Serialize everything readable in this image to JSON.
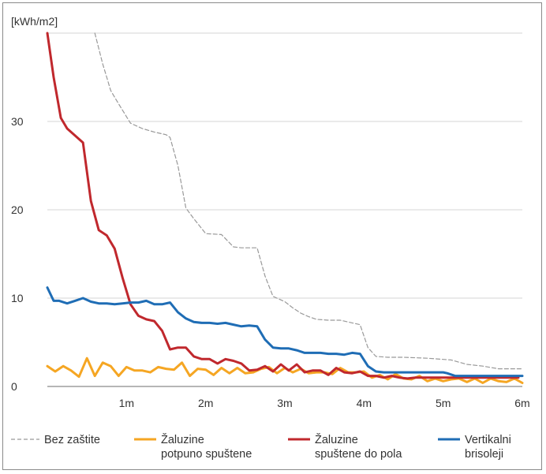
{
  "chart_data": {
    "type": "line",
    "ylabel": "[kWh/m2]",
    "y_ticks": [
      "0",
      "10",
      "20",
      "30"
    ],
    "x_ticks": [
      "1m",
      "2m",
      "3m",
      "4m",
      "5m",
      "6m"
    ],
    "xlim": [
      0,
      6
    ],
    "ylim": [
      0,
      40
    ],
    "grid": "horizontal",
    "legend_position": "bottom",
    "series": [
      {
        "name": "Bez zaštite",
        "name_lines": [
          "Bez zaštite"
        ],
        "color": "#999999",
        "style": "dashed",
        "x": [
          0.6,
          0.7,
          0.75,
          0.8,
          0.9,
          1.05,
          1.2,
          1.35,
          1.5,
          1.55,
          1.65,
          1.75,
          1.85,
          2.0,
          2.2,
          2.35,
          2.45,
          2.65,
          2.75,
          2.85,
          3.0,
          3.1,
          3.2,
          3.3,
          3.4,
          3.55,
          3.7,
          3.85,
          3.95,
          4.05,
          4.15,
          4.3,
          4.5,
          4.8,
          5.1,
          5.3,
          5.5,
          5.7,
          6.0
        ],
        "y": [
          40,
          36.5,
          35,
          33.5,
          32,
          29.8,
          29.2,
          28.8,
          28.5,
          28.2,
          25,
          20.2,
          19,
          17.3,
          17.2,
          15.8,
          15.7,
          15.7,
          12.5,
          10.2,
          9.6,
          8.9,
          8.3,
          7.9,
          7.6,
          7.5,
          7.5,
          7.2,
          7.0,
          4.4,
          3.4,
          3.3,
          3.3,
          3.2,
          3.0,
          2.5,
          2.3,
          2.0,
          2.0
        ]
      },
      {
        "name": "Žaluzine potpuno spuštene",
        "name_lines": [
          "Žaluzine",
          "potpuno spuštene"
        ],
        "color": "#f5a623",
        "style": "solid",
        "x": [
          0.0,
          0.1,
          0.2,
          0.3,
          0.4,
          0.5,
          0.6,
          0.7,
          0.8,
          0.9,
          1.0,
          1.1,
          1.2,
          1.3,
          1.4,
          1.5,
          1.6,
          1.7,
          1.8,
          1.9,
          2.0,
          2.1,
          2.2,
          2.3,
          2.4,
          2.5,
          2.6,
          2.7,
          2.8,
          2.9,
          3.0,
          3.1,
          3.2,
          3.3,
          3.4,
          3.5,
          3.6,
          3.7,
          3.8,
          3.9,
          4.0,
          4.1,
          4.2,
          4.3,
          4.4,
          4.5,
          4.6,
          4.7,
          4.8,
          4.9,
          5.0,
          5.1,
          5.2,
          5.3,
          5.4,
          5.5,
          5.6,
          5.7,
          5.8,
          5.9,
          6.0
        ],
        "y": [
          2.3,
          1.7,
          2.3,
          1.8,
          1.1,
          3.2,
          1.2,
          2.7,
          2.3,
          1.2,
          2.2,
          1.8,
          1.8,
          1.6,
          2.2,
          2.0,
          1.9,
          2.7,
          1.2,
          2.0,
          1.9,
          1.3,
          2.1,
          1.5,
          2.1,
          1.5,
          1.6,
          2.0,
          2.2,
          1.5,
          2.1,
          1.6,
          2.0,
          1.5,
          1.6,
          1.6,
          1.4,
          2.1,
          1.6,
          1.6,
          1.7,
          1.0,
          1.3,
          0.8,
          1.4,
          0.9,
          0.8,
          1.2,
          0.6,
          0.9,
          0.6,
          0.8,
          0.9,
          0.5,
          0.9,
          0.4,
          0.9,
          0.6,
          0.5,
          0.9,
          0.4
        ]
      },
      {
        "name": "Žaluzine spuštene do pola",
        "name_lines": [
          "Žaluzine",
          "spuštene do pola"
        ],
        "color": "#c0282d",
        "style": "solid",
        "x": [
          0.0,
          0.08,
          0.17,
          0.25,
          0.35,
          0.45,
          0.55,
          0.65,
          0.75,
          0.85,
          0.95,
          1.05,
          1.15,
          1.25,
          1.35,
          1.45,
          1.55,
          1.65,
          1.75,
          1.85,
          1.95,
          2.05,
          2.15,
          2.25,
          2.35,
          2.45,
          2.55,
          2.65,
          2.75,
          2.85,
          2.95,
          3.05,
          3.15,
          3.25,
          3.35,
          3.45,
          3.55,
          3.65,
          3.75,
          3.85,
          3.95,
          4.05,
          4.15,
          4.25,
          4.35,
          4.45,
          4.55,
          4.65,
          4.75,
          4.85,
          4.95,
          5.05,
          5.15,
          5.25,
          5.35,
          5.45,
          5.55,
          5.65,
          5.75,
          5.85,
          5.95
        ],
        "y": [
          40,
          35,
          30.4,
          29.2,
          28.4,
          27.6,
          21,
          17.7,
          17.1,
          15.6,
          12.3,
          9.3,
          8.0,
          7.6,
          7.4,
          6.3,
          4.2,
          4.4,
          4.4,
          3.4,
          3.1,
          3.1,
          2.6,
          3.1,
          2.9,
          2.6,
          1.8,
          1.9,
          2.3,
          1.7,
          2.5,
          1.8,
          2.5,
          1.6,
          1.8,
          1.8,
          1.3,
          2.1,
          1.6,
          1.5,
          1.7,
          1.2,
          1.2,
          1.0,
          1.2,
          1.0,
          0.9,
          1.0,
          1.0,
          1.0,
          1.0,
          1.0,
          1.0,
          1.0,
          1.0,
          1.0,
          1.0,
          1.0,
          1.0,
          1.0,
          1.0
        ]
      },
      {
        "name": "Vertikalni brisoleji",
        "name_lines": [
          "Vertikalni",
          "brisoleji"
        ],
        "color": "#1f6db5",
        "style": "solid",
        "x": [
          0.0,
          0.08,
          0.15,
          0.25,
          0.35,
          0.45,
          0.55,
          0.65,
          0.75,
          0.85,
          0.95,
          1.05,
          1.15,
          1.25,
          1.35,
          1.45,
          1.55,
          1.65,
          1.75,
          1.85,
          1.95,
          2.05,
          2.15,
          2.25,
          2.35,
          2.45,
          2.55,
          2.65,
          2.75,
          2.85,
          2.95,
          3.05,
          3.15,
          3.25,
          3.35,
          3.45,
          3.55,
          3.65,
          3.75,
          3.85,
          3.95,
          4.05,
          4.15,
          4.25,
          4.5,
          4.8,
          5.0,
          5.05,
          5.15,
          5.4,
          5.7,
          6.0
        ],
        "y": [
          11.2,
          9.7,
          9.7,
          9.4,
          9.7,
          10.0,
          9.6,
          9.4,
          9.4,
          9.3,
          9.4,
          9.5,
          9.5,
          9.7,
          9.3,
          9.3,
          9.5,
          8.4,
          7.7,
          7.3,
          7.2,
          7.2,
          7.1,
          7.2,
          7.0,
          6.8,
          6.9,
          6.8,
          5.3,
          4.4,
          4.3,
          4.3,
          4.1,
          3.8,
          3.8,
          3.8,
          3.7,
          3.7,
          3.6,
          3.8,
          3.7,
          2.3,
          1.7,
          1.6,
          1.6,
          1.6,
          1.6,
          1.5,
          1.2,
          1.2,
          1.2,
          1.2
        ]
      }
    ]
  }
}
